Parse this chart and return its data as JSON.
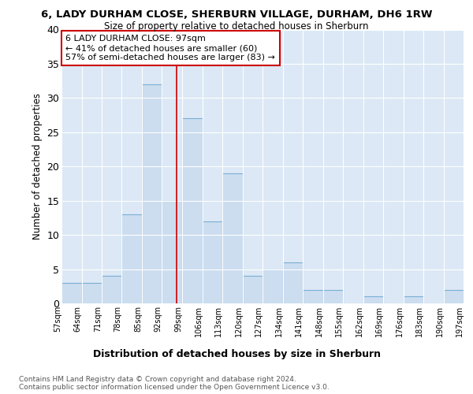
{
  "title": "6, LADY DURHAM CLOSE, SHERBURN VILLAGE, DURHAM, DH6 1RW",
  "subtitle": "Size of property relative to detached houses in Sherburn",
  "xlabel": "Distribution of detached houses by size in Sherburn",
  "ylabel": "Number of detached properties",
  "bar_color": "#ccddf0",
  "bar_edge_color": "#7aafd4",
  "plot_bg_color": "#dce8f5",
  "fig_bg_color": "#ffffff",
  "grid_color": "#ffffff",
  "bins": [
    57,
    64,
    71,
    78,
    85,
    92,
    99,
    106,
    113,
    120,
    127,
    134,
    141,
    148,
    155,
    162,
    169,
    176,
    183,
    190,
    197
  ],
  "counts": [
    3,
    3,
    4,
    13,
    32,
    15,
    27,
    12,
    19,
    4,
    5,
    6,
    2,
    2,
    0,
    1,
    0,
    1,
    0,
    2
  ],
  "property_size": 97,
  "annotation_text": "6 LADY DURHAM CLOSE: 97sqm\n← 41% of detached houses are smaller (60)\n57% of semi-detached houses are larger (83) →",
  "vline_color": "#cc0000",
  "annotation_box_facecolor": "#ffffff",
  "annotation_box_edgecolor": "#cc0000",
  "ylim": [
    0,
    40
  ],
  "yticks": [
    0,
    5,
    10,
    15,
    20,
    25,
    30,
    35,
    40
  ],
  "footer_line1": "Contains HM Land Registry data © Crown copyright and database right 2024.",
  "footer_line2": "Contains public sector information licensed under the Open Government Licence v3.0."
}
